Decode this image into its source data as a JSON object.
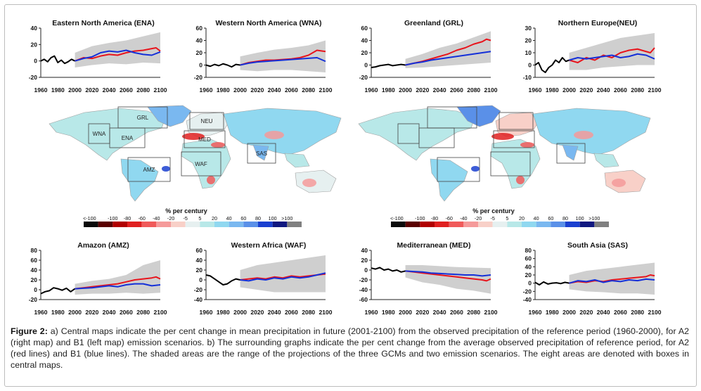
{
  "caption": {
    "label": "Figure 2:",
    "text": " a) Central maps indicate the per cent change in mean precipitation in future (2001-2100) from the observed precipitation of the reference period (1960-2000), for A2 (right map) and B1 (left map) emission scenarios. b) The surrounding graphs indicate the per cent change from the average observed precipitation of reference period, for A2 (red lines) and B1 (blue lines). The shaded areas are the range of the projections of the three GCMs and two emission scenarios. The eight areas are denoted with boxes in central maps."
  },
  "colors": {
    "observed": "#000000",
    "A2": "#e8141c",
    "B1": "#1530d8",
    "range": "#cfcfcf"
  },
  "map_regions": [
    "GRL",
    "NEU",
    "WNA",
    "ENA",
    "MED",
    "WAF",
    "AMZ",
    "SAS"
  ],
  "legend": {
    "title": "% per century",
    "ticks": [
      "<-100",
      "-100",
      "-80",
      "-60",
      "-40",
      "-20",
      "-5",
      "5",
      "20",
      "40",
      "60",
      "80",
      "100",
      ">100"
    ],
    "colors": [
      "#0a0a0a",
      "#5a0000",
      "#b00000",
      "#e02020",
      "#f05a5a",
      "#f59a9a",
      "#f8d0c8",
      "#e6f0f0",
      "#b8e8e8",
      "#90d8f0",
      "#7ab8f0",
      "#5a90e8",
      "#1a40d0",
      "#101880",
      "#808080"
    ]
  },
  "chart_data": [
    {
      "type": "line",
      "title": "Eastern North America (ENA)",
      "ylim": [
        -20,
        40
      ],
      "yticks": [
        "40",
        "20",
        "0",
        "-20"
      ],
      "xlim": [
        1960,
        2100
      ],
      "xticks": [
        "1960",
        "1980",
        "2000",
        "2020",
        "2040",
        "2060",
        "2080",
        "2100"
      ],
      "series": [
        {
          "name": "observed",
          "x": [
            1960,
            1964,
            1968,
            1972,
            1976,
            1980,
            1984,
            1988,
            1992,
            1996,
            2000
          ],
          "values": [
            0,
            2,
            -1,
            4,
            6,
            -2,
            1,
            -3,
            -1,
            2,
            0
          ]
        },
        {
          "name": "A2",
          "x": [
            2000,
            2010,
            2020,
            2030,
            2040,
            2050,
            2060,
            2070,
            2080,
            2090,
            2095,
            2100
          ],
          "values": [
            0,
            4,
            3,
            6,
            8,
            7,
            10,
            12,
            13,
            15,
            16,
            12
          ]
        },
        {
          "name": "B1",
          "x": [
            2000,
            2010,
            2020,
            2030,
            2040,
            2050,
            2060,
            2070,
            2080,
            2090,
            2100
          ],
          "values": [
            0,
            3,
            5,
            10,
            12,
            11,
            13,
            10,
            8,
            7,
            11
          ]
        }
      ],
      "range": {
        "x": [
          2000,
          2020,
          2040,
          2060,
          2080,
          2100
        ],
        "upper": [
          10,
          18,
          22,
          25,
          30,
          35
        ],
        "lower": [
          -8,
          -5,
          -3,
          -4,
          -2,
          -3
        ]
      }
    },
    {
      "type": "line",
      "title": "Western North America (WNA)",
      "ylim": [
        -20,
        60
      ],
      "yticks": [
        "60",
        "40",
        "20",
        "0",
        "-20"
      ],
      "xlim": [
        1960,
        2100
      ],
      "xticks": [
        "1960",
        "1980",
        "2000",
        "2020",
        "2040",
        "2060",
        "2080",
        "2100"
      ],
      "series": [
        {
          "name": "observed",
          "x": [
            1960,
            1965,
            1970,
            1975,
            1980,
            1985,
            1990,
            1995,
            2000
          ],
          "values": [
            0,
            -2,
            1,
            -1,
            2,
            0,
            -3,
            1,
            0
          ]
        },
        {
          "name": "A2",
          "x": [
            2000,
            2010,
            2020,
            2030,
            2040,
            2050,
            2060,
            2070,
            2080,
            2090,
            2100
          ],
          "values": [
            0,
            4,
            6,
            8,
            8,
            9,
            10,
            12,
            16,
            24,
            22
          ]
        },
        {
          "name": "B1",
          "x": [
            2000,
            2010,
            2020,
            2030,
            2040,
            2050,
            2060,
            2070,
            2080,
            2090,
            2100
          ],
          "values": [
            0,
            3,
            5,
            6,
            7,
            8,
            9,
            10,
            11,
            12,
            6
          ]
        }
      ],
      "range": {
        "x": [
          2000,
          2020,
          2040,
          2060,
          2080,
          2100
        ],
        "upper": [
          14,
          20,
          25,
          28,
          32,
          40
        ],
        "lower": [
          -8,
          -10,
          -8,
          -8,
          -10,
          -12
        ]
      }
    },
    {
      "type": "line",
      "title": "Greenland (GRL)",
      "ylim": [
        -20,
        60
      ],
      "yticks": [
        "60",
        "40",
        "20",
        "0",
        "-20"
      ],
      "xlim": [
        1960,
        2100
      ],
      "xticks": [
        "1960",
        "1980",
        "2000",
        "2020",
        "2040",
        "2060",
        "2080",
        "2100"
      ],
      "series": [
        {
          "name": "observed",
          "x": [
            1960,
            1965,
            1970,
            1975,
            1980,
            1985,
            1990,
            1995,
            2000
          ],
          "values": [
            -4,
            -3,
            -1,
            0,
            1,
            -1,
            0,
            1,
            0
          ]
        },
        {
          "name": "A2",
          "x": [
            2000,
            2010,
            2020,
            2030,
            2040,
            2050,
            2060,
            2070,
            2080,
            2090,
            2095,
            2100
          ],
          "values": [
            0,
            3,
            6,
            10,
            14,
            18,
            24,
            28,
            34,
            38,
            42,
            40
          ]
        },
        {
          "name": "B1",
          "x": [
            2000,
            2010,
            2020,
            2030,
            2040,
            2050,
            2060,
            2070,
            2080,
            2090,
            2100
          ],
          "values": [
            0,
            3,
            5,
            8,
            10,
            12,
            14,
            16,
            18,
            20,
            22
          ]
        }
      ],
      "range": {
        "x": [
          2000,
          2020,
          2040,
          2060,
          2080,
          2100
        ],
        "upper": [
          10,
          18,
          28,
          35,
          45,
          55
        ],
        "lower": [
          -5,
          -4,
          -2,
          0,
          2,
          4
        ]
      }
    },
    {
      "type": "line",
      "title": "Northern Europe(NEU)",
      "ylim": [
        -10,
        30
      ],
      "yticks": [
        "30",
        "20",
        "10",
        "0",
        "-10"
      ],
      "xlim": [
        1960,
        2100
      ],
      "xticks": [
        "1960",
        "1980",
        "2000",
        "2020",
        "2040",
        "2060",
        "2080",
        "2100"
      ],
      "series": [
        {
          "name": "observed",
          "x": [
            1960,
            1964,
            1968,
            1972,
            1976,
            1980,
            1984,
            1988,
            1992,
            1996,
            2000
          ],
          "values": [
            0,
            2,
            -4,
            -6,
            -2,
            0,
            4,
            2,
            6,
            3,
            4
          ]
        },
        {
          "name": "A2",
          "x": [
            2000,
            2010,
            2020,
            2030,
            2040,
            2050,
            2060,
            2070,
            2080,
            2090,
            2095,
            2100
          ],
          "values": [
            4,
            2,
            6,
            4,
            8,
            6,
            10,
            12,
            13,
            11,
            10,
            14
          ]
        },
        {
          "name": "B1",
          "x": [
            2000,
            2010,
            2020,
            2030,
            2040,
            2050,
            2060,
            2070,
            2080,
            2090,
            2100
          ],
          "values": [
            4,
            6,
            5,
            6,
            7,
            8,
            6,
            7,
            9,
            8,
            5
          ]
        }
      ],
      "range": {
        "x": [
          2000,
          2020,
          2040,
          2060,
          2080,
          2100
        ],
        "upper": [
          10,
          14,
          18,
          22,
          24,
          26
        ],
        "lower": [
          -4,
          -4,
          -2,
          -1,
          0,
          0
        ]
      }
    },
    {
      "type": "line",
      "title": "Amazon (AMZ)",
      "ylim": [
        -20,
        80
      ],
      "yticks": [
        "80",
        "60",
        "40",
        "20",
        "0",
        "-20"
      ],
      "xlim": [
        1960,
        2100
      ],
      "xticks": [
        "1960",
        "1980",
        "2000",
        "2020",
        "2040",
        "2060",
        "2080",
        "2100"
      ],
      "series": [
        {
          "name": "observed",
          "x": [
            1960,
            1965,
            1970,
            1975,
            1980,
            1985,
            1990,
            1995,
            2000
          ],
          "values": [
            -8,
            -4,
            -2,
            4,
            2,
            -1,
            3,
            -4,
            2
          ]
        },
        {
          "name": "A2",
          "x": [
            2000,
            2010,
            2020,
            2030,
            2040,
            2050,
            2060,
            2070,
            2080,
            2090,
            2095,
            2100
          ],
          "values": [
            2,
            4,
            6,
            8,
            10,
            12,
            16,
            20,
            22,
            24,
            26,
            22
          ]
        },
        {
          "name": "B1",
          "x": [
            2000,
            2010,
            2020,
            2030,
            2040,
            2050,
            2060,
            2070,
            2080,
            2090,
            2100
          ],
          "values": [
            2,
            3,
            4,
            6,
            8,
            6,
            10,
            12,
            12,
            8,
            10
          ]
        }
      ],
      "range": {
        "x": [
          2000,
          2020,
          2040,
          2060,
          2080,
          2100
        ],
        "upper": [
          12,
          18,
          22,
          30,
          50,
          60
        ],
        "lower": [
          -10,
          -8,
          -8,
          -6,
          -8,
          -6
        ]
      }
    },
    {
      "type": "line",
      "title": "Western Africa (WAF)",
      "ylim": [
        -40,
        60
      ],
      "yticks": [
        "60",
        "40",
        "20",
        "0",
        "-20",
        "-40"
      ],
      "xlim": [
        1960,
        2100
      ],
      "xticks": [
        "1960",
        "1980",
        "2000",
        "2020",
        "2040",
        "2060",
        "2080",
        "2100"
      ],
      "series": [
        {
          "name": "observed",
          "x": [
            1960,
            1965,
            1970,
            1975,
            1980,
            1985,
            1990,
            1995,
            2000
          ],
          "values": [
            10,
            8,
            2,
            -4,
            -10,
            -8,
            -2,
            2,
            0
          ]
        },
        {
          "name": "A2",
          "x": [
            2000,
            2010,
            2020,
            2030,
            2040,
            2050,
            2060,
            2070,
            2080,
            2090,
            2100
          ],
          "values": [
            0,
            2,
            4,
            2,
            6,
            4,
            8,
            6,
            8,
            10,
            12
          ]
        },
        {
          "name": "B1",
          "x": [
            2000,
            2010,
            2020,
            2030,
            2040,
            2050,
            2060,
            2070,
            2080,
            2090,
            2100
          ],
          "values": [
            0,
            -2,
            2,
            0,
            4,
            2,
            6,
            4,
            6,
            10,
            14
          ]
        }
      ],
      "range": {
        "x": [
          2000,
          2020,
          2040,
          2060,
          2080,
          2100
        ],
        "upper": [
          20,
          30,
          35,
          40,
          45,
          50
        ],
        "lower": [
          -15,
          -20,
          -25,
          -25,
          -25,
          -25
        ]
      }
    },
    {
      "type": "line",
      "title": "Mediterranean (MED)",
      "ylim": [
        -60,
        40
      ],
      "yticks": [
        "40",
        "20",
        "0",
        "-20",
        "-40",
        "-60"
      ],
      "xlim": [
        1960,
        2100
      ],
      "xticks": [
        "1960",
        "1980",
        "2000",
        "2020",
        "2040",
        "2060",
        "2080",
        "2100"
      ],
      "series": [
        {
          "name": "observed",
          "x": [
            1960,
            1965,
            1970,
            1975,
            1980,
            1985,
            1990,
            1995,
            2000
          ],
          "values": [
            4,
            2,
            5,
            0,
            2,
            -2,
            0,
            -4,
            -2
          ]
        },
        {
          "name": "A2",
          "x": [
            2000,
            2010,
            2020,
            2030,
            2040,
            2050,
            2060,
            2070,
            2080,
            2090,
            2095,
            2100
          ],
          "values": [
            -2,
            -4,
            -6,
            -8,
            -10,
            -12,
            -14,
            -16,
            -18,
            -20,
            -22,
            -18
          ]
        },
        {
          "name": "B1",
          "x": [
            2000,
            2010,
            2020,
            2030,
            2040,
            2050,
            2060,
            2070,
            2080,
            2090,
            2100
          ],
          "values": [
            -2,
            -3,
            -4,
            -6,
            -7,
            -8,
            -9,
            -10,
            -10,
            -12,
            -10
          ]
        }
      ],
      "range": {
        "x": [
          2000,
          2020,
          2040,
          2060,
          2080,
          2100
        ],
        "upper": [
          10,
          10,
          8,
          6,
          5,
          4
        ],
        "lower": [
          -15,
          -25,
          -30,
          -38,
          -42,
          -48
        ]
      }
    },
    {
      "type": "line",
      "title": "South Asia (SAS)",
      "ylim": [
        -40,
        80
      ],
      "yticks": [
        "80",
        "60",
        "40",
        "20",
        "0",
        "-20",
        "-40"
      ],
      "xlim": [
        1960,
        2100
      ],
      "xticks": [
        "1960",
        "1980",
        "2000",
        "2020",
        "2040",
        "2060",
        "2080",
        "2100"
      ],
      "series": [
        {
          "name": "observed",
          "x": [
            1960,
            1965,
            1970,
            1975,
            1980,
            1985,
            1990,
            1995,
            2000
          ],
          "values": [
            2,
            -4,
            3,
            -2,
            0,
            1,
            -1,
            2,
            0
          ]
        },
        {
          "name": "A2",
          "x": [
            2000,
            2010,
            2020,
            2030,
            2040,
            2050,
            2060,
            2070,
            2080,
            2090,
            2095,
            2100
          ],
          "values": [
            0,
            4,
            2,
            6,
            4,
            8,
            10,
            12,
            14,
            16,
            20,
            18
          ]
        },
        {
          "name": "B1",
          "x": [
            2000,
            2010,
            2020,
            2030,
            2040,
            2050,
            2060,
            2070,
            2080,
            2090,
            2100
          ],
          "values": [
            0,
            6,
            4,
            8,
            2,
            6,
            4,
            8,
            6,
            10,
            8
          ]
        }
      ],
      "range": {
        "x": [
          2000,
          2020,
          2040,
          2060,
          2080,
          2100
        ],
        "upper": [
          20,
          30,
          35,
          40,
          45,
          50
        ],
        "lower": [
          -15,
          -20,
          -22,
          -25,
          -25,
          -28
        ]
      }
    }
  ]
}
